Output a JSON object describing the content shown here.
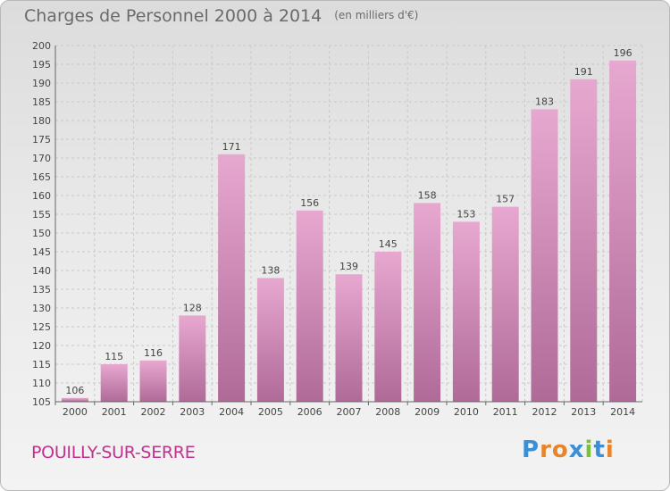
{
  "header": {
    "title": "Charges de Personnel 2000 à 2014",
    "unit": "(en milliers d'€)"
  },
  "footer": {
    "commune": "POUILLY-SUR-SERRE",
    "logo": "Proxiti",
    "logo_colors": [
      "#3a8fd6",
      "#e8842a",
      "#e8842a",
      "#3a8fd6",
      "#7bbf3a",
      "#3a8fd6",
      "#e8842a"
    ]
  },
  "colors": {
    "bar_top": "#e7a8d0",
    "bar_bottom": "#b06a98",
    "grid": "#c9c9c9",
    "axis": "#666666"
  },
  "chart_data": {
    "type": "bar",
    "title": "Charges de Personnel 2000 à 2014",
    "subtitle": "(en milliers d'€)",
    "categories": [
      "2000",
      "2001",
      "2002",
      "2003",
      "2004",
      "2005",
      "2006",
      "2007",
      "2008",
      "2009",
      "2010",
      "2011",
      "2012",
      "2013",
      "2014"
    ],
    "values": [
      106,
      115,
      116,
      128,
      171,
      138,
      156,
      139,
      145,
      158,
      153,
      157,
      183,
      191,
      196
    ],
    "ylim": [
      105,
      200
    ],
    "ytick_step": 5,
    "grid": true,
    "data_labels": true
  }
}
